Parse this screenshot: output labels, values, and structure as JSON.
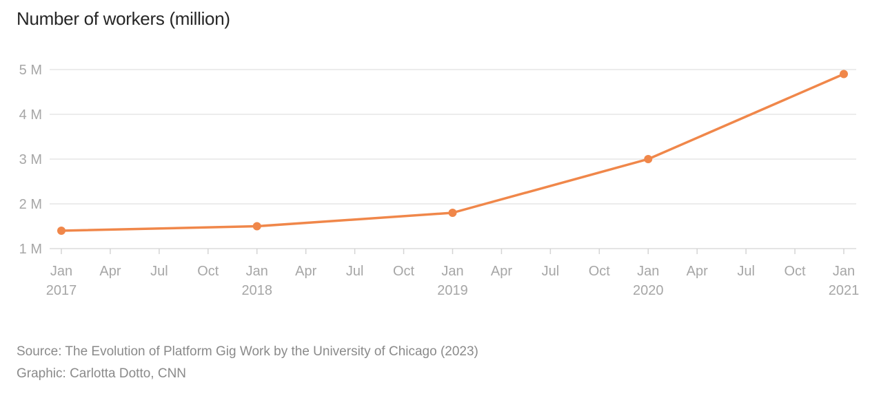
{
  "chart_data": {
    "type": "line",
    "title": "Number of workers (million)",
    "xlabel": "",
    "ylabel": "",
    "x_range": [
      "2017-01",
      "2021-01"
    ],
    "ylim": [
      1,
      5
    ],
    "y_ticks": [
      1,
      2,
      3,
      4,
      5
    ],
    "y_tick_labels": [
      "1 M",
      "2 M",
      "3 M",
      "4 M",
      "5 M"
    ],
    "x_ticks": [
      {
        "date": "2017-01",
        "label": "Jan",
        "year": "2017"
      },
      {
        "date": "2017-04",
        "label": "Apr",
        "year": ""
      },
      {
        "date": "2017-07",
        "label": "Jul",
        "year": ""
      },
      {
        "date": "2017-10",
        "label": "Oct",
        "year": ""
      },
      {
        "date": "2018-01",
        "label": "Jan",
        "year": "2018"
      },
      {
        "date": "2018-04",
        "label": "Apr",
        "year": ""
      },
      {
        "date": "2018-07",
        "label": "Jul",
        "year": ""
      },
      {
        "date": "2018-10",
        "label": "Oct",
        "year": ""
      },
      {
        "date": "2019-01",
        "label": "Jan",
        "year": "2019"
      },
      {
        "date": "2019-04",
        "label": "Apr",
        "year": ""
      },
      {
        "date": "2019-07",
        "label": "Jul",
        "year": ""
      },
      {
        "date": "2019-10",
        "label": "Oct",
        "year": ""
      },
      {
        "date": "2020-01",
        "label": "Jan",
        "year": "2020"
      },
      {
        "date": "2020-04",
        "label": "Apr",
        "year": ""
      },
      {
        "date": "2020-07",
        "label": "Jul",
        "year": ""
      },
      {
        "date": "2020-10",
        "label": "Oct",
        "year": ""
      },
      {
        "date": "2021-01",
        "label": "Jan",
        "year": "2021"
      }
    ],
    "series": [
      {
        "color": "#f0874a",
        "points": [
          {
            "x": "2017-01",
            "y": 1.4
          },
          {
            "x": "2018-01",
            "y": 1.5
          },
          {
            "x": "2019-01",
            "y": 1.8
          },
          {
            "x": "2020-01",
            "y": 3.0
          },
          {
            "x": "2021-01",
            "y": 4.9
          }
        ]
      }
    ],
    "grid": true,
    "legend": "none"
  },
  "footer": {
    "source": "Source: The Evolution of Platform Gig Work by the University of Chicago (2023)",
    "credit": "Graphic: Carlotta Dotto, CNN"
  },
  "colors": {
    "line": "#f0874a",
    "grid": "#e6e6e6",
    "tick_text": "#a6a6a6",
    "title_text": "#262626"
  }
}
